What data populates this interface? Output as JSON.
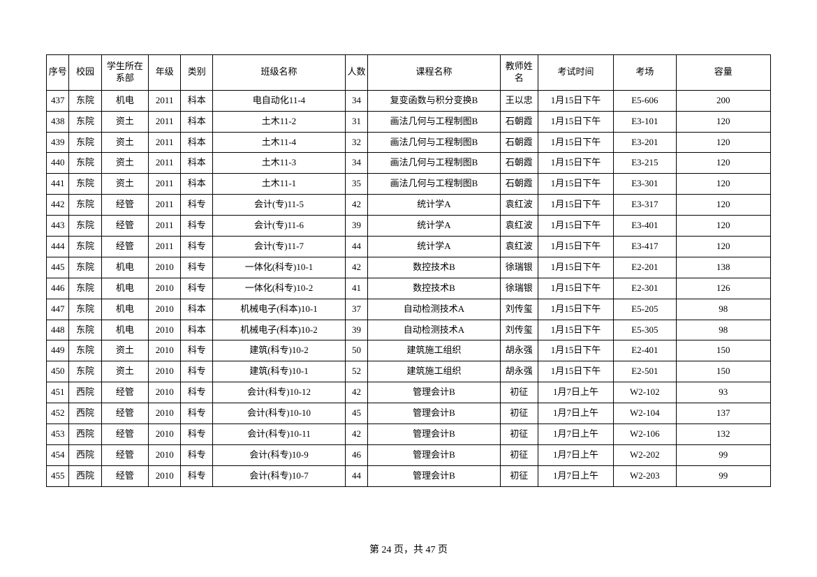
{
  "table": {
    "columns": [
      "序号",
      "校园",
      "学生所在系部",
      "年级",
      "类别",
      "班级名称",
      "人数",
      "课程名称",
      "教师姓名",
      "考试时间",
      "考场",
      "容量"
    ],
    "rows": [
      [
        "437",
        "东院",
        "机电",
        "2011",
        "科本",
        "电自动化11-4",
        "34",
        "复变函数与积分变换B",
        "王以忠",
        "1月15日下午",
        "E5-606",
        "200"
      ],
      [
        "438",
        "东院",
        "资土",
        "2011",
        "科本",
        "土木11-2",
        "31",
        "画法几何与工程制图B",
        "石朝霞",
        "1月15日下午",
        "E3-101",
        "120"
      ],
      [
        "439",
        "东院",
        "资土",
        "2011",
        "科本",
        "土木11-4",
        "32",
        "画法几何与工程制图B",
        "石朝霞",
        "1月15日下午",
        "E3-201",
        "120"
      ],
      [
        "440",
        "东院",
        "资土",
        "2011",
        "科本",
        "土木11-3",
        "34",
        "画法几何与工程制图B",
        "石朝霞",
        "1月15日下午",
        "E3-215",
        "120"
      ],
      [
        "441",
        "东院",
        "资土",
        "2011",
        "科本",
        "土木11-1",
        "35",
        "画法几何与工程制图B",
        "石朝霞",
        "1月15日下午",
        "E3-301",
        "120"
      ],
      [
        "442",
        "东院",
        "经管",
        "2011",
        "科专",
        "会计(专)11-5",
        "42",
        "统计学A",
        "袁红波",
        "1月15日下午",
        "E3-317",
        "120"
      ],
      [
        "443",
        "东院",
        "经管",
        "2011",
        "科专",
        "会计(专)11-6",
        "39",
        "统计学A",
        "袁红波",
        "1月15日下午",
        "E3-401",
        "120"
      ],
      [
        "444",
        "东院",
        "经管",
        "2011",
        "科专",
        "会计(专)11-7",
        "44",
        "统计学A",
        "袁红波",
        "1月15日下午",
        "E3-417",
        "120"
      ],
      [
        "445",
        "东院",
        "机电",
        "2010",
        "科专",
        "一体化(科专)10-1",
        "42",
        "数控技术B",
        "徐瑞银",
        "1月15日下午",
        "E2-201",
        "138"
      ],
      [
        "446",
        "东院",
        "机电",
        "2010",
        "科专",
        "一体化(科专)10-2",
        "41",
        "数控技术B",
        "徐瑞银",
        "1月15日下午",
        "E2-301",
        "126"
      ],
      [
        "447",
        "东院",
        "机电",
        "2010",
        "科本",
        "机械电子(科本)10-1",
        "37",
        "自动检测技术A",
        "刘传玺",
        "1月15日下午",
        "E5-205",
        "98"
      ],
      [
        "448",
        "东院",
        "机电",
        "2010",
        "科本",
        "机械电子(科本)10-2",
        "39",
        "自动检测技术A",
        "刘传玺",
        "1月15日下午",
        "E5-305",
        "98"
      ],
      [
        "449",
        "东院",
        "资土",
        "2010",
        "科专",
        "建筑(科专)10-2",
        "50",
        "建筑施工组织",
        "胡永强",
        "1月15日下午",
        "E2-401",
        "150"
      ],
      [
        "450",
        "东院",
        "资土",
        "2010",
        "科专",
        "建筑(科专)10-1",
        "52",
        "建筑施工组织",
        "胡永强",
        "1月15日下午",
        "E2-501",
        "150"
      ],
      [
        "451",
        "西院",
        "经管",
        "2010",
        "科专",
        "会计(科专)10-12",
        "42",
        "管理会计B",
        "初征",
        "1月7日上午",
        "W2-102",
        "93"
      ],
      [
        "452",
        "西院",
        "经管",
        "2010",
        "科专",
        "会计(科专)10-10",
        "45",
        "管理会计B",
        "初征",
        "1月7日上午",
        "W2-104",
        "137"
      ],
      [
        "453",
        "西院",
        "经管",
        "2010",
        "科专",
        "会计(科专)10-11",
        "42",
        "管理会计B",
        "初征",
        "1月7日上午",
        "W2-106",
        "132"
      ],
      [
        "454",
        "西院",
        "经管",
        "2010",
        "科专",
        "会计(科专)10-9",
        "46",
        "管理会计B",
        "初征",
        "1月7日上午",
        "W2-202",
        "99"
      ],
      [
        "455",
        "西院",
        "经管",
        "2010",
        "科专",
        "会计(科专)10-7",
        "44",
        "管理会计B",
        "初征",
        "1月7日上午",
        "W2-203",
        "99"
      ]
    ]
  },
  "footer": {
    "text": "第 24 页，共 47 页"
  }
}
